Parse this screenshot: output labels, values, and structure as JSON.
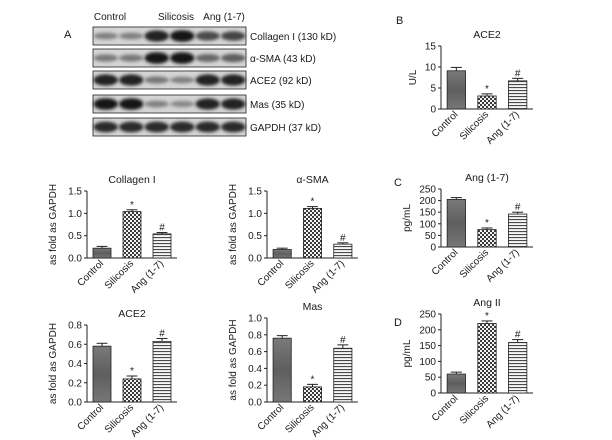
{
  "panel_letters": {
    "a": "A",
    "b": "B",
    "c": "C",
    "d": "D"
  },
  "blot": {
    "columns": [
      "Control",
      "Silicosis",
      "Ang (1-7)"
    ],
    "rows": [
      {
        "label": "Collagen I (130 kD)",
        "levels": [
          0.35,
          0.35,
          0.9,
          0.95,
          0.65,
          0.7
        ]
      },
      {
        "label": "α-SMA (43 kD)",
        "levels": [
          0.4,
          0.4,
          0.95,
          0.95,
          0.5,
          0.55
        ]
      },
      {
        "label": "ACE2 (92 kD)",
        "levels": [
          0.9,
          0.9,
          0.4,
          0.35,
          0.9,
          0.9
        ]
      },
      {
        "label": "Mas (35 kD)",
        "levels": [
          0.95,
          0.95,
          0.35,
          0.3,
          0.9,
          0.9
        ]
      },
      {
        "label": "GAPDH (37 kD)",
        "levels": [
          0.85,
          0.85,
          0.85,
          0.85,
          0.85,
          0.85
        ]
      }
    ]
  },
  "chart_data": [
    {
      "id": "collagen",
      "type": "bar",
      "title": "Collagen I",
      "ylabel": "as fold as GAPDH",
      "categories": [
        "Control",
        "Silicosis",
        "Ang (1-7)"
      ],
      "values": [
        0.22,
        1.04,
        0.54
      ],
      "errors": [
        0.04,
        0.04,
        0.03
      ],
      "marks": [
        "",
        "*",
        "#"
      ],
      "ylim": [
        0,
        1.5
      ],
      "yticks": [
        "0.0",
        "0.5",
        "1.0",
        "1.5"
      ]
    },
    {
      "id": "asma",
      "type": "bar",
      "title": "α-SMA",
      "ylabel": "as fold as GAPDH",
      "categories": [
        "Control",
        "Silicosis",
        "Ang (1-7)"
      ],
      "values": [
        0.19,
        1.11,
        0.31
      ],
      "errors": [
        0.03,
        0.04,
        0.03
      ],
      "marks": [
        "",
        "*",
        "#"
      ],
      "ylim": [
        0,
        1.5
      ],
      "yticks": [
        "0.0",
        "0.5",
        "1.0",
        "1.5"
      ]
    },
    {
      "id": "ace2wb",
      "type": "bar",
      "title": "ACE2",
      "ylabel": "as fold as GAPDH",
      "categories": [
        "Control",
        "Silicosis",
        "Ang (1-7)"
      ],
      "values": [
        0.58,
        0.24,
        0.63
      ],
      "errors": [
        0.03,
        0.03,
        0.03
      ],
      "marks": [
        "",
        "*",
        "#"
      ],
      "ylim": [
        0,
        0.8
      ],
      "yticks": [
        "0.0",
        "0.2",
        "0.4",
        "0.6",
        "0.8"
      ]
    },
    {
      "id": "mas",
      "type": "bar",
      "title": "Mas",
      "ylabel": "as fold as GAPDH",
      "categories": [
        "Control",
        "Silicosis",
        "Ang (1-7)"
      ],
      "values": [
        0.76,
        0.18,
        0.64
      ],
      "errors": [
        0.03,
        0.03,
        0.04
      ],
      "marks": [
        "",
        "*",
        "#"
      ],
      "ylim": [
        0,
        1.0
      ],
      "yticks": [
        "0.0",
        "0.2",
        "0.4",
        "0.6",
        "0.8",
        "1.0"
      ]
    },
    {
      "id": "ace2b",
      "type": "bar",
      "title": "ACE2",
      "ylabel": "U/L",
      "categories": [
        "Control",
        "Silicosis",
        "Ang (1-7)"
      ],
      "values": [
        9.1,
        3.1,
        6.7
      ],
      "errors": [
        0.8,
        0.5,
        0.6
      ],
      "marks": [
        "",
        "*",
        "#"
      ],
      "ylim": [
        0,
        15
      ],
      "yticks": [
        "0",
        "5",
        "10",
        "15"
      ]
    },
    {
      "id": "ang17",
      "type": "bar",
      "title": "Ang (1-7)",
      "ylabel": "pg/mL",
      "categories": [
        "Control",
        "Silicosis",
        "Ang (1-7)"
      ],
      "values": [
        205,
        75,
        142
      ],
      "errors": [
        8,
        7,
        8
      ],
      "marks": [
        "",
        "*",
        "#"
      ],
      "ylim": [
        0,
        250
      ],
      "yticks": [
        "0",
        "50",
        "100",
        "150",
        "200",
        "250"
      ]
    },
    {
      "id": "ang2",
      "type": "bar",
      "title": "Ang II",
      "ylabel": "pg/mL",
      "categories": [
        "Control",
        "Silicosis",
        "Ang (1-7)"
      ],
      "values": [
        60,
        220,
        160
      ],
      "errors": [
        6,
        8,
        9
      ],
      "marks": [
        "",
        "*",
        "#"
      ],
      "ylim": [
        0,
        250
      ],
      "yticks": [
        "0",
        "50",
        "100",
        "150",
        "200",
        "250"
      ]
    }
  ]
}
